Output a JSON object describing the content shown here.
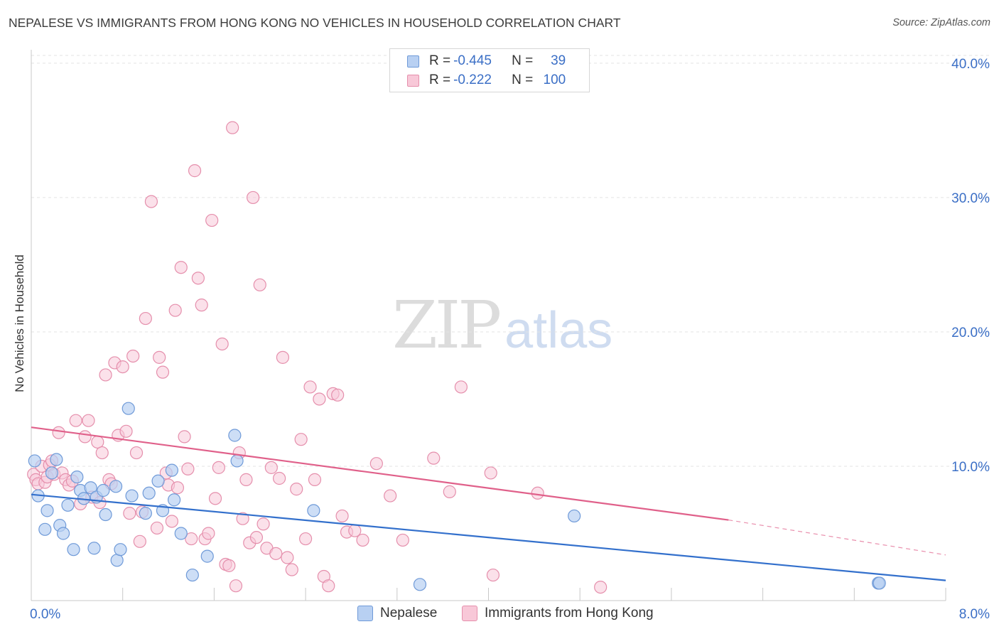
{
  "title": "NEPALESE VS IMMIGRANTS FROM HONG KONG NO VEHICLES IN HOUSEHOLD CORRELATION CHART",
  "source": "Source: ZipAtlas.com",
  "watermark": {
    "zip": "ZIP",
    "atlas": "atlas"
  },
  "legend": {
    "rows": [
      {
        "r_label": "R = ",
        "r_value": "-0.445",
        "n_label": "N = ",
        "n_value": "39"
      },
      {
        "r_label": "R = ",
        "r_value": "-0.222",
        "n_label": "N = ",
        "n_value": "100"
      }
    ]
  },
  "colors": {
    "nepalese_fill": "#b8d0f2",
    "nepalese_stroke": "#6f9ad8",
    "nepalese_line": "#3370cc",
    "hk_fill": "#f8c8d8",
    "hk_stroke": "#e58fac",
    "hk_line": "#e0608a",
    "tick_label": "#3b6fc6",
    "grid": "#e3e3e3"
  },
  "chart_data": {
    "type": "scatter",
    "title": "NEPALESE VS IMMIGRANTS FROM HONG KONG NO VEHICLES IN HOUSEHOLD CORRELATION CHART",
    "xlabel": "",
    "ylabel": "No Vehicles in Household",
    "xlim": [
      0,
      8
    ],
    "ylim": [
      0,
      41
    ],
    "x_tick_labels": [
      "0.0%",
      "8.0%"
    ],
    "y_ticks": [
      10,
      20,
      30,
      40
    ],
    "y_tick_labels": [
      "10.0%",
      "20.0%",
      "30.0%",
      "40.0%"
    ],
    "grid": true,
    "legend_position": "top-center",
    "series": [
      {
        "name": "Nepalese",
        "r": -0.445,
        "n": 39,
        "points": [
          [
            0.03,
            10.4
          ],
          [
            0.06,
            7.8
          ],
          [
            0.12,
            5.3
          ],
          [
            0.14,
            6.7
          ],
          [
            0.18,
            9.5
          ],
          [
            0.22,
            10.5
          ],
          [
            0.25,
            5.6
          ],
          [
            0.28,
            5.0
          ],
          [
            0.32,
            7.1
          ],
          [
            0.37,
            3.8
          ],
          [
            0.4,
            9.2
          ],
          [
            0.43,
            8.2
          ],
          [
            0.46,
            7.6
          ],
          [
            0.52,
            8.4
          ],
          [
            0.55,
            3.9
          ],
          [
            0.57,
            7.7
          ],
          [
            0.63,
            8.2
          ],
          [
            0.65,
            6.4
          ],
          [
            0.74,
            8.5
          ],
          [
            0.75,
            3.0
          ],
          [
            0.78,
            3.8
          ],
          [
            0.85,
            14.3
          ],
          [
            0.88,
            7.8
          ],
          [
            1.0,
            6.5
          ],
          [
            1.03,
            8.0
          ],
          [
            1.11,
            8.9
          ],
          [
            1.15,
            6.7
          ],
          [
            1.23,
            9.7
          ],
          [
            1.25,
            7.5
          ],
          [
            1.31,
            5.0
          ],
          [
            1.41,
            1.9
          ],
          [
            1.54,
            3.3
          ],
          [
            1.78,
            12.3
          ],
          [
            1.8,
            10.4
          ],
          [
            2.47,
            6.7
          ],
          [
            3.4,
            1.2
          ],
          [
            4.75,
            6.3
          ],
          [
            7.41,
            1.3
          ],
          [
            7.42,
            1.3
          ]
        ],
        "trend": {
          "x": [
            0,
            8
          ],
          "y": [
            7.9,
            1.5
          ]
        }
      },
      {
        "name": "Immigrants from Hong Kong",
        "r": -0.222,
        "n": 100,
        "points": [
          [
            0.02,
            9.4
          ],
          [
            0.04,
            9.0
          ],
          [
            0.06,
            8.7
          ],
          [
            0.09,
            10.0
          ],
          [
            0.12,
            8.8
          ],
          [
            0.14,
            9.2
          ],
          [
            0.16,
            10.1
          ],
          [
            0.18,
            10.4
          ],
          [
            0.2,
            9.4
          ],
          [
            0.24,
            12.5
          ],
          [
            0.27,
            9.5
          ],
          [
            0.3,
            9.0
          ],
          [
            0.33,
            8.6
          ],
          [
            0.36,
            8.9
          ],
          [
            0.39,
            13.4
          ],
          [
            0.43,
            7.2
          ],
          [
            0.47,
            12.2
          ],
          [
            0.5,
            13.4
          ],
          [
            0.53,
            7.7
          ],
          [
            0.58,
            11.8
          ],
          [
            0.6,
            7.3
          ],
          [
            0.62,
            11.0
          ],
          [
            0.65,
            16.8
          ],
          [
            0.68,
            9.0
          ],
          [
            0.7,
            8.7
          ],
          [
            0.73,
            17.7
          ],
          [
            0.76,
            12.3
          ],
          [
            0.8,
            17.4
          ],
          [
            0.83,
            12.6
          ],
          [
            0.86,
            6.5
          ],
          [
            0.89,
            18.2
          ],
          [
            0.92,
            11.0
          ],
          [
            0.95,
            4.4
          ],
          [
            0.97,
            6.6
          ],
          [
            1.0,
            21.0
          ],
          [
            1.05,
            29.7
          ],
          [
            1.1,
            5.4
          ],
          [
            1.12,
            18.1
          ],
          [
            1.15,
            17.0
          ],
          [
            1.18,
            9.5
          ],
          [
            1.2,
            8.6
          ],
          [
            1.23,
            5.9
          ],
          [
            1.26,
            21.6
          ],
          [
            1.28,
            8.4
          ],
          [
            1.31,
            24.8
          ],
          [
            1.34,
            12.2
          ],
          [
            1.37,
            9.8
          ],
          [
            1.4,
            4.6
          ],
          [
            1.43,
            32.0
          ],
          [
            1.46,
            24.0
          ],
          [
            1.49,
            22.0
          ],
          [
            1.52,
            4.6
          ],
          [
            1.55,
            5.0
          ],
          [
            1.58,
            28.3
          ],
          [
            1.61,
            7.6
          ],
          [
            1.64,
            9.9
          ],
          [
            1.67,
            19.1
          ],
          [
            1.7,
            2.7
          ],
          [
            1.73,
            2.6
          ],
          [
            1.76,
            35.2
          ],
          [
            1.79,
            1.1
          ],
          [
            1.82,
            11.0
          ],
          [
            1.85,
            6.1
          ],
          [
            1.88,
            9.0
          ],
          [
            1.91,
            4.3
          ],
          [
            1.94,
            30.0
          ],
          [
            1.97,
            4.7
          ],
          [
            2.0,
            23.5
          ],
          [
            2.03,
            5.7
          ],
          [
            2.06,
            3.9
          ],
          [
            2.1,
            9.9
          ],
          [
            2.14,
            3.5
          ],
          [
            2.17,
            9.1
          ],
          [
            2.2,
            18.1
          ],
          [
            2.24,
            3.2
          ],
          [
            2.28,
            2.3
          ],
          [
            2.32,
            8.3
          ],
          [
            2.36,
            12.0
          ],
          [
            2.4,
            4.6
          ],
          [
            2.44,
            15.9
          ],
          [
            2.48,
            9.0
          ],
          [
            2.52,
            15.0
          ],
          [
            2.56,
            1.8
          ],
          [
            2.6,
            1.1
          ],
          [
            2.64,
            15.4
          ],
          [
            2.68,
            15.3
          ],
          [
            2.72,
            6.3
          ],
          [
            2.76,
            5.1
          ],
          [
            2.83,
            5.2
          ],
          [
            2.9,
            4.5
          ],
          [
            3.02,
            10.2
          ],
          [
            3.14,
            7.8
          ],
          [
            3.25,
            4.5
          ],
          [
            3.52,
            10.6
          ],
          [
            3.66,
            8.1
          ],
          [
            3.76,
            15.9
          ],
          [
            4.02,
            9.5
          ],
          [
            4.04,
            1.9
          ],
          [
            4.43,
            8.0
          ],
          [
            4.98,
            1.0
          ]
        ],
        "trend": {
          "x": [
            0,
            6.1
          ],
          "y": [
            12.9,
            6.0
          ]
        },
        "trend_dashed": {
          "x": [
            6.1,
            8
          ],
          "y": [
            6.0,
            3.4
          ]
        }
      }
    ]
  }
}
